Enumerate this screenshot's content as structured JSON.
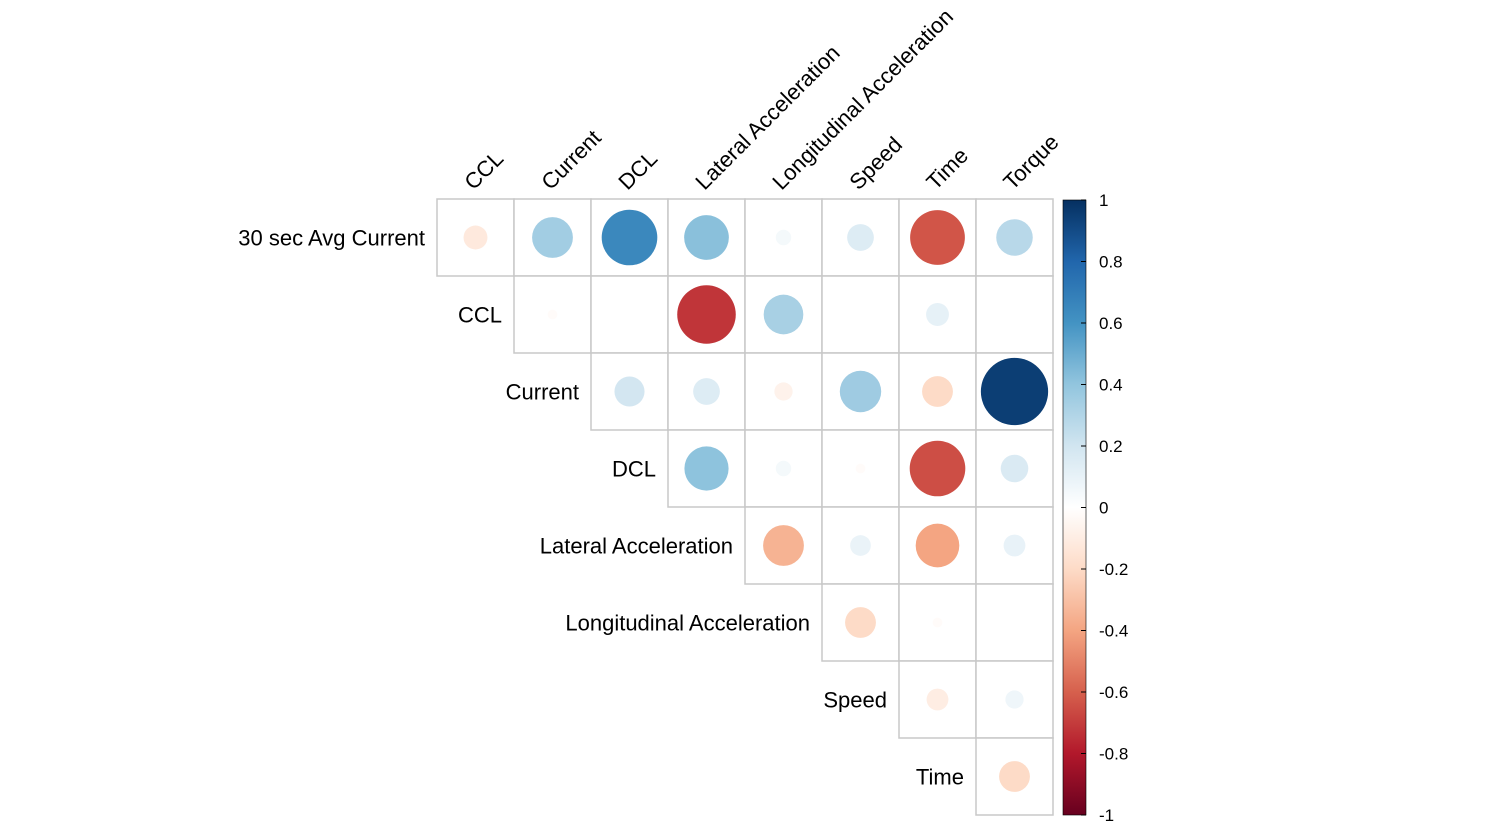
{
  "chart_data": {
    "type": "heatmap",
    "layout": "upper-triangle",
    "mark": "circle",
    "row_labels": [
      "30 sec Avg Current",
      "CCL",
      "Current",
      "DCL",
      "Lateral Acceleration",
      "Longitudinal Acceleration",
      "Speed",
      "Time"
    ],
    "col_labels": [
      "CCL",
      "Current",
      "DCL",
      "Lateral Acceleration",
      "Longitudinal Acceleration",
      "Speed",
      "Time",
      "Torque"
    ],
    "values": [
      [
        -0.12,
        0.35,
        0.65,
        0.42,
        0.05,
        0.15,
        -0.63,
        0.28
      ],
      [
        -0.02,
        0.0,
        -0.72,
        0.33,
        0.0,
        0.11,
        0.0
      ],
      [
        0.19,
        0.15,
        -0.07,
        0.36,
        -0.2,
        0.95
      ],
      [
        0.41,
        0.05,
        -0.02,
        -0.65,
        0.16
      ],
      [
        -0.35,
        0.09,
        -0.4,
        0.1
      ],
      [
        -0.2,
        -0.02,
        0.0
      ],
      [
        -0.1,
        0.07
      ],
      [
        -0.2
      ]
    ],
    "colorbar": {
      "range": [
        -1,
        1
      ],
      "ticks": [
        "1",
        "0.8",
        "0.6",
        "0.4",
        "0.2",
        "0",
        "-0.2",
        "-0.4",
        "-0.6",
        "-0.8",
        "-1"
      ],
      "colors": [
        "#67001f",
        "#b2182b",
        "#d6604d",
        "#f4a582",
        "#fddbc7",
        "#ffffff",
        "#d1e5f0",
        "#92c5de",
        "#4393c3",
        "#2166ac",
        "#053061"
      ]
    }
  }
}
